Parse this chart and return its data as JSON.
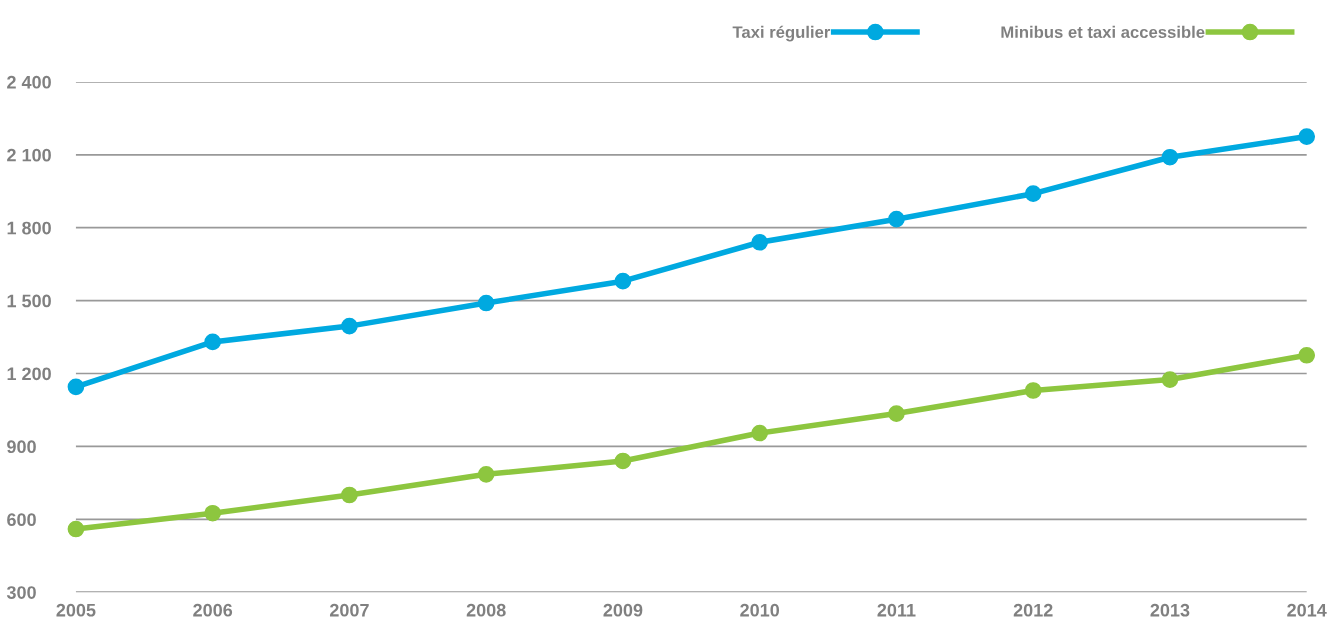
{
  "chart_data": {
    "type": "line",
    "x": [
      2005,
      2006,
      2007,
      2008,
      2009,
      2010,
      2011,
      2012,
      2013,
      2014
    ],
    "series": [
      {
        "name": "Taxi régulier",
        "color": "#00a9e0",
        "values": [
          1145,
          1330,
          1395,
          1490,
          1580,
          1740,
          1835,
          1940,
          2090,
          2175
        ]
      },
      {
        "name": "Minibus et taxi accessible",
        "color": "#8dc63f",
        "values": [
          560,
          625,
          700,
          785,
          840,
          955,
          1035,
          1130,
          1175,
          1275
        ]
      }
    ],
    "xlim": [
      2005,
      2014
    ],
    "xticks": [
      2005,
      2006,
      2007,
      2008,
      2009,
      2010,
      2011,
      2012,
      2013,
      2014
    ],
    "ylim": [
      300,
      2400
    ],
    "yticks": [
      {
        "value": 300,
        "label": "300"
      },
      {
        "value": 600,
        "label": "600"
      },
      {
        "value": 900,
        "label": "900"
      },
      {
        "value": 1200,
        "label": "1 200"
      },
      {
        "value": 1500,
        "label": "1 500"
      },
      {
        "value": 1800,
        "label": "1 800"
      },
      {
        "value": 2100,
        "label": "2 100"
      },
      {
        "value": 2400,
        "label": "2 400"
      }
    ],
    "grid": "y",
    "legend": "top right",
    "marker": "circle",
    "line_style": "solid"
  }
}
